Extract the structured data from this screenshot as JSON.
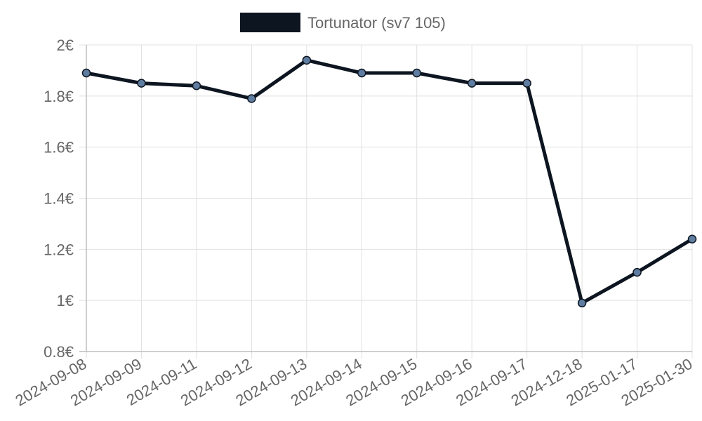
{
  "chart_data": {
    "type": "line",
    "title": "",
    "xlabel": "",
    "ylabel": "",
    "categories": [
      "2024-09-08",
      "2024-09-09",
      "2024-09-11",
      "2024-09-12",
      "2024-09-13",
      "2024-09-14",
      "2024-09-15",
      "2024-09-16",
      "2024-09-17",
      "2024-12-18",
      "2025-01-17",
      "2025-01-30"
    ],
    "series": [
      {
        "name": "Tortunator (sv7 105)",
        "values": [
          1.89,
          1.85,
          1.84,
          1.79,
          1.94,
          1.89,
          1.89,
          1.85,
          1.85,
          0.99,
          1.11,
          1.24
        ],
        "color": "#0d1520",
        "point_fill": "#5f7da0"
      }
    ],
    "ylim": [
      0.8,
      2.0
    ],
    "yticks": [
      {
        "value": 0.8,
        "label": "0.8€"
      },
      {
        "value": 1.0,
        "label": "1€"
      },
      {
        "value": 1.2,
        "label": "1.2€"
      },
      {
        "value": 1.4,
        "label": "1.4€"
      },
      {
        "value": 1.6,
        "label": "1.6€"
      },
      {
        "value": 1.8,
        "label": "1.8€"
      },
      {
        "value": 2.0,
        "label": "2€"
      }
    ],
    "grid": true,
    "legend_position": "top-center"
  }
}
